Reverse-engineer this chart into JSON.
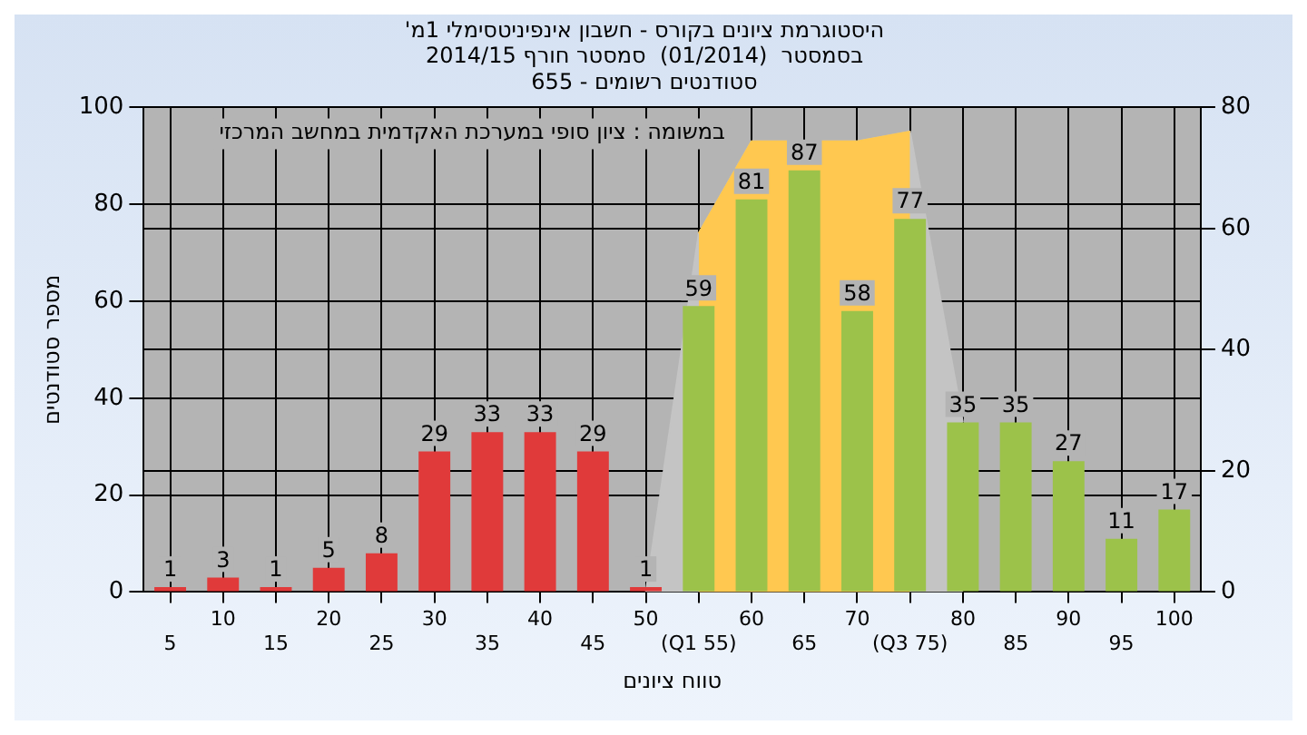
{
  "chart_data": {
    "type": "bar",
    "title": "'היסטוגרמת ציונים בקורס - חשבון אינפיניטסימלי 1מ",
    "subtitle": [
      "בסמסטר  (01/2014)  סמסטר חורף 2014/15",
      "סטודנטים רשומים - 655"
    ],
    "xlabel": "טווח ציונים",
    "ylabel": "מספר סטודנטים",
    "annotations": [
      "במשומה : ציון סופי במערכת האקדמית במחשב המרכזי"
    ],
    "categories": [
      "5",
      "10",
      "15",
      "20",
      "25",
      "30",
      "35",
      "40",
      "45",
      "50",
      "(Q1 55)",
      "60",
      "65",
      "70",
      "(Q3 75)",
      "80",
      "85",
      "90",
      "95",
      "100"
    ],
    "series": [
      {
        "values": [
          1,
          3,
          1,
          5,
          8,
          29,
          33,
          33,
          29,
          1,
          59,
          81,
          87,
          58,
          77,
          35,
          35,
          27,
          11,
          17
        ],
        "value_labels": [
          "1",
          "3",
          "1",
          "5",
          "8",
          "29",
          "33",
          "33",
          "29",
          "1",
          "59",
          "81",
          "87",
          "58",
          "77",
          "35",
          "35",
          "27",
          "11",
          "17"
        ],
        "colors": [
          "#e03a3a",
          "#e03a3a",
          "#e03a3a",
          "#e03a3a",
          "#e03a3a",
          "#e03a3a",
          "#e03a3a",
          "#e03a3a",
          "#e03a3a",
          "#e03a3a",
          "#9cc24a",
          "#9cc24a",
          "#9cc24a",
          "#9cc24a",
          "#9cc24a",
          "#9cc24a",
          "#9cc24a",
          "#9cc24a",
          "#9cc24a",
          "#9cc24a"
        ]
      },
      {
        "type": "area",
        "color": "#ffc850",
        "values": [
          null,
          null,
          null,
          null,
          null,
          null,
          null,
          null,
          null,
          null,
          74,
          93,
          93,
          93,
          95,
          null,
          null,
          null,
          null,
          null
        ]
      },
      {
        "type": "area",
        "color": "#c4c4c4",
        "values": [
          null,
          null,
          null,
          null,
          null,
          null,
          null,
          null,
          null,
          0,
          74,
          93,
          93,
          93,
          95,
          35,
          null,
          null,
          null,
          null
        ]
      }
    ],
    "ylim": [
      0,
      100
    ],
    "yticks": [
      0,
      20,
      40,
      60,
      80,
      100
    ],
    "y2lim": [
      0,
      80
    ],
    "y2ticks": [
      0,
      20,
      40,
      60,
      80
    ],
    "grid": true,
    "legend": false
  }
}
